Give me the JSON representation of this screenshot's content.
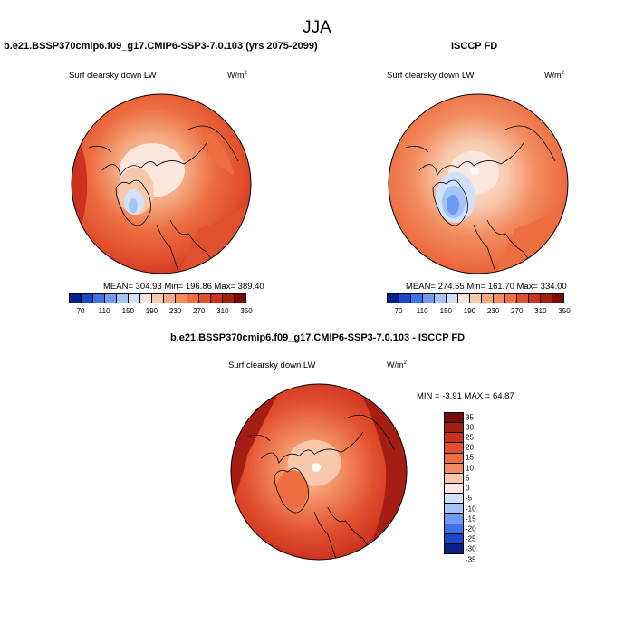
{
  "season": "JJA",
  "panels": {
    "model": {
      "title": "b.e21.BSSP370cmip6.f09_g17.CMIP6-SSP3-7.0.103 (yrs 2075-2099)",
      "variable": "Surf clearsky down LW",
      "units_base": "W/m",
      "units_exp": "2",
      "stats": "MEAN= 304.93  Min= 196.86  Max= 389.40"
    },
    "obs": {
      "title": "ISCCP FD",
      "variable": "Surf clearsky down LW",
      "units_base": "W/m",
      "units_exp": "2",
      "stats": "MEAN= 274.55  Min= 161.70  Max= 334.00"
    },
    "diff": {
      "title": "b.e21.BSSP370cmip6.f09_g17.CMIP6-SSP3-7.0.103 - ISCCP FD",
      "variable": "Surf clearsky down LW",
      "units_base": "W/m",
      "units_exp": "2",
      "stats": "MIN =  -3.91 MAX =  64.87"
    }
  },
  "colorbar_main": {
    "colors": [
      "#0a1e8c",
      "#1e46c8",
      "#3c73e6",
      "#6e9bf0",
      "#a5c3f5",
      "#d2e1fa",
      "#fae6dc",
      "#f8c8ac",
      "#f5aa82",
      "#f28c5f",
      "#ec6e41",
      "#e1502d",
      "#cd3220",
      "#a51e14",
      "#7d0a0a"
    ],
    "labels": [
      "70",
      "110",
      "150",
      "190",
      "230",
      "270",
      "310",
      "350"
    ]
  },
  "colorbar_diff": {
    "colors": [
      "#7d0a0a",
      "#a51e14",
      "#cd3220",
      "#e1502d",
      "#ec6e41",
      "#f28c5f",
      "#f8c8ac",
      "#fae6dc",
      "#d2e1fa",
      "#a5c3f5",
      "#6e9bf0",
      "#3c73e6",
      "#1e46c8",
      "#0a1e8c"
    ],
    "labels": [
      "35",
      "30",
      "25",
      "20",
      "15",
      "10",
      "5",
      "0",
      "-5",
      "-10",
      "-15",
      "-20",
      "-25",
      "-30",
      "-35"
    ]
  }
}
